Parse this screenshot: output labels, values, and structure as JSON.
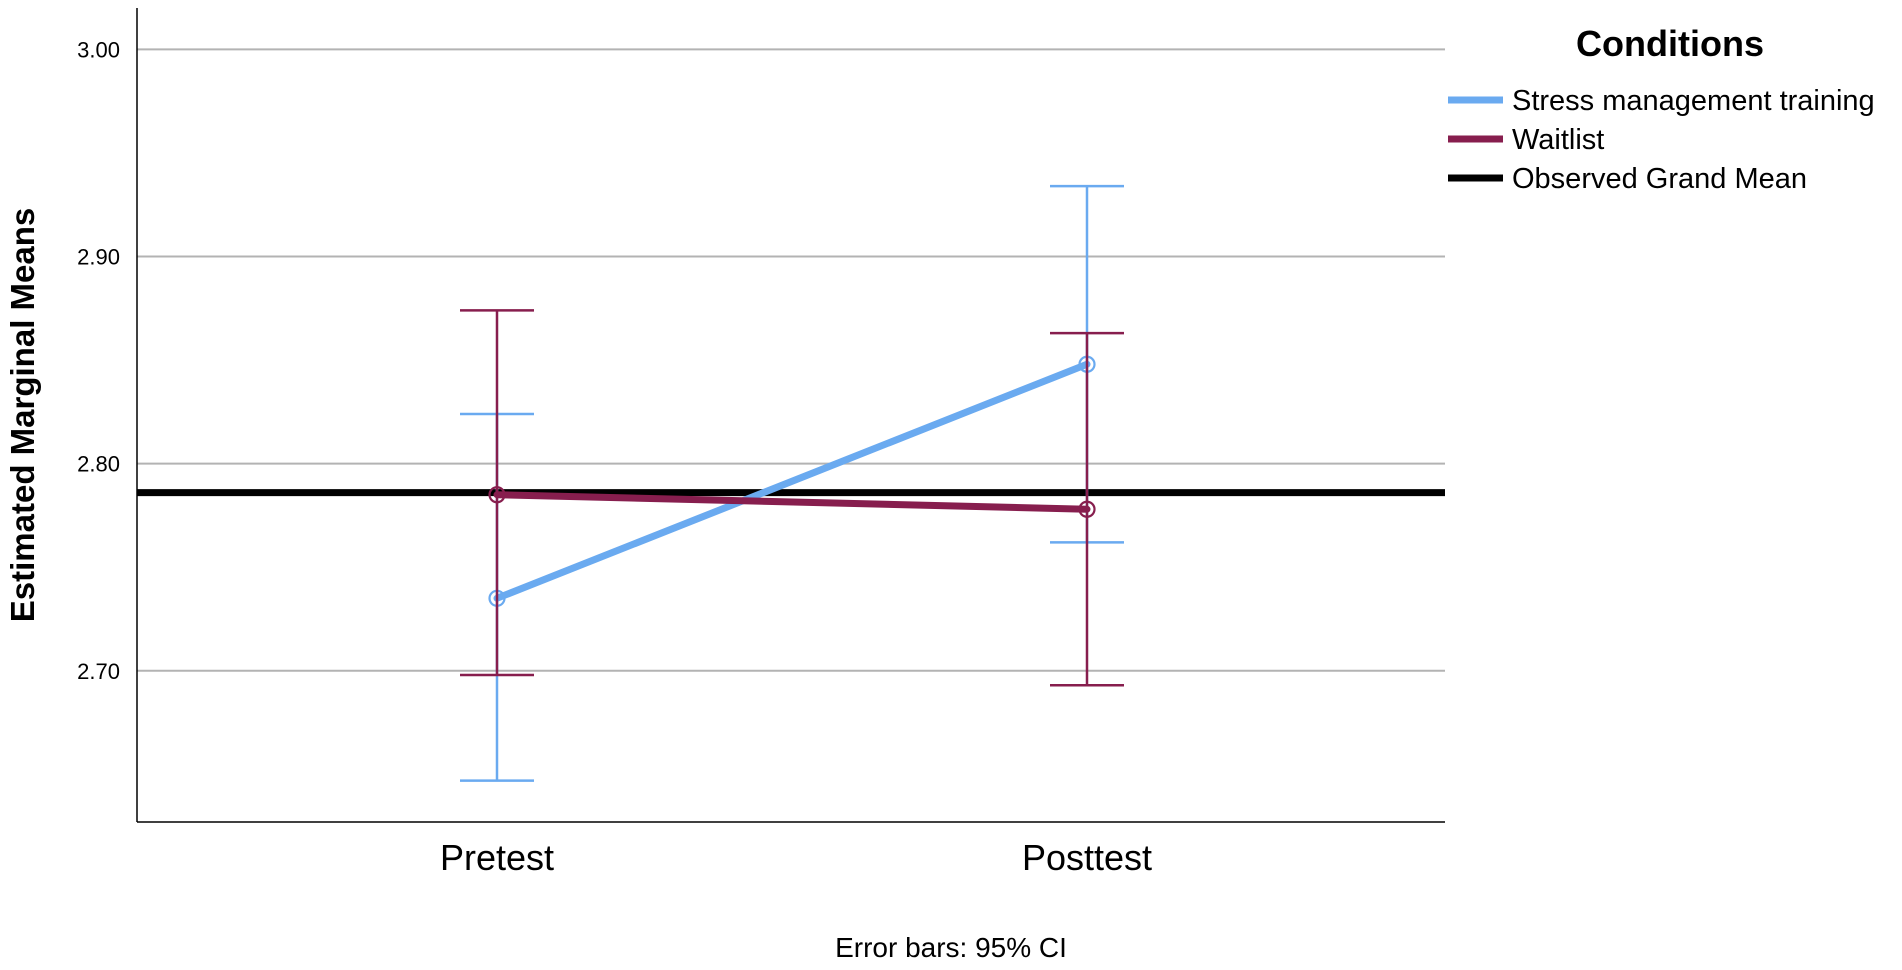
{
  "chart_data": {
    "type": "line",
    "title": "",
    "xlabel": "",
    "ylabel": "Estimated Marginal Means",
    "categories": [
      "Pretest",
      "Posttest"
    ],
    "ylim": [
      2.627,
      3.02
    ],
    "yticks": [
      2.7,
      2.8,
      2.9,
      3.0
    ],
    "ytick_labels": [
      "2.70",
      "2.80",
      "2.90",
      "3.00"
    ],
    "grid": true,
    "series": [
      {
        "name": "Stress management training",
        "color": "#6aaaf0",
        "values": [
          2.735,
          2.848
        ],
        "ci_lower": [
          2.647,
          2.762
        ],
        "ci_upper": [
          2.824,
          2.934
        ]
      },
      {
        "name": "Waitlist",
        "color": "#871e4e",
        "values": [
          2.785,
          2.778
        ],
        "ci_lower": [
          2.698,
          2.693
        ],
        "ci_upper": [
          2.874,
          2.863
        ]
      }
    ],
    "reference_line": {
      "name": "Observed Grand Mean",
      "value": 2.786,
      "color": "#000000"
    },
    "legend": {
      "title": "Conditions",
      "position": "top-right"
    },
    "footnote": "Error bars: 95% CI"
  }
}
